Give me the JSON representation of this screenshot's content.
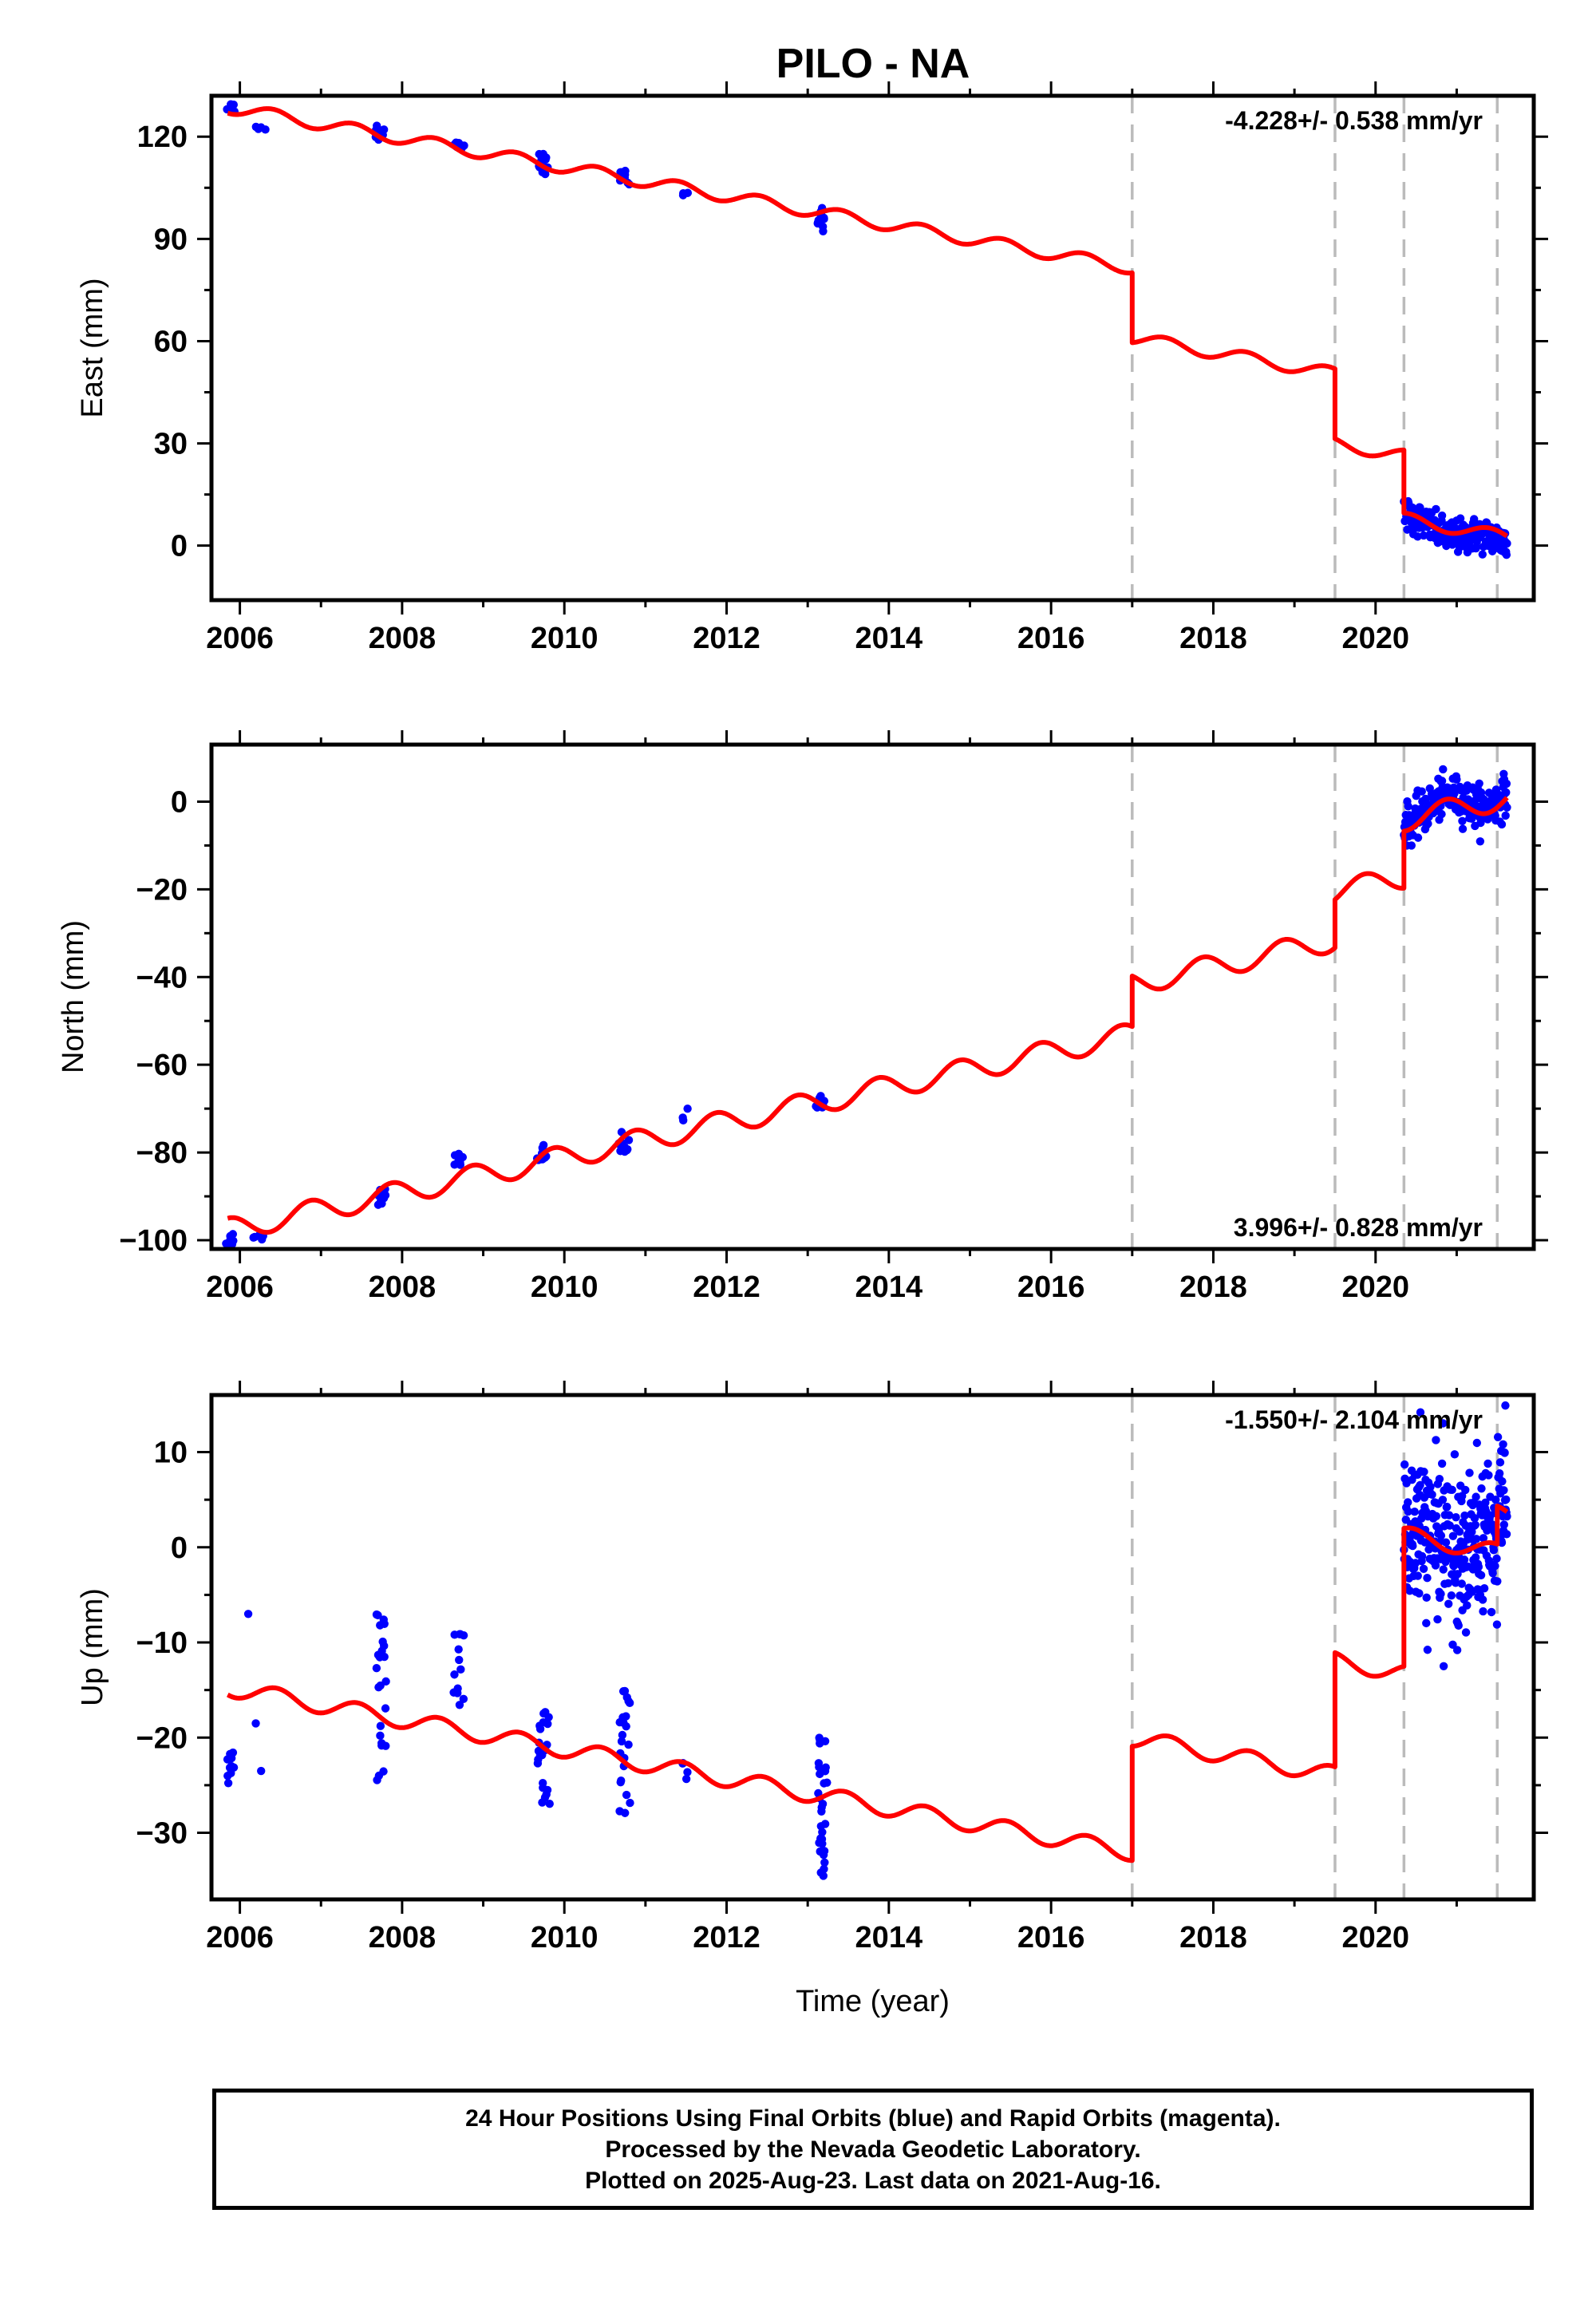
{
  "title": "PILO - NA",
  "colors": {
    "final_orbits": "#0000ff",
    "model": "#ff0000",
    "offsets": "#bbbbbb",
    "axes": "#000000"
  },
  "chart_data": [
    {
      "type": "scatter",
      "panel": "east",
      "ylabel": "East (mm)",
      "xlabel": "",
      "xlim": [
        2005.65,
        2021.95
      ],
      "ylim": [
        -16,
        132
      ],
      "xticks": [
        2006,
        2008,
        2010,
        2012,
        2014,
        2016,
        2018,
        2020
      ],
      "xtick_labels": [
        "2006",
        "2008",
        "2010",
        "2012",
        "2014",
        "2016",
        "2018",
        "2020"
      ],
      "yticks": [
        0,
        30,
        60,
        90,
        120
      ],
      "ytick_labels": [
        "0",
        "30",
        "60",
        "90",
        "120"
      ],
      "velocity": "-4.228+/- 0.538 mm/yr",
      "velocity_position": "top-right",
      "offsets": [
        2017.0,
        2019.5,
        2020.35,
        2021.5
      ],
      "model": {
        "rate": -4.228,
        "ref_x": 2006.0,
        "ref_y": 128.0,
        "amplitude": 1.8,
        "phase": 0.15,
        "steps": [
          {
            "x": 2017.0,
            "dy": -20.5
          },
          {
            "x": 2019.5,
            "dy": -20.5
          },
          {
            "x": 2020.35,
            "dy": -18.5
          }
        ]
      },
      "data_clusters": [
        {
          "x": [
            2005.85,
            2005.92
          ],
          "y": [
            130,
            127
          ],
          "n": 10
        },
        {
          "x": [
            2006.2,
            2006.3
          ],
          "y": [
            123,
            122
          ],
          "n": 4
        },
        {
          "x": [
            2007.68,
            2007.78
          ],
          "y": [
            124,
            119
          ],
          "n": 14
        },
        {
          "x": [
            2008.65,
            2008.75
          ],
          "y": [
            119,
            116
          ],
          "n": 8
        },
        {
          "x": [
            2009.68,
            2009.78
          ],
          "y": [
            115,
            109
          ],
          "n": 14
        },
        {
          "x": [
            2010.68,
            2010.78
          ],
          "y": [
            110,
            105
          ],
          "n": 10
        },
        {
          "x": [
            2011.45,
            2011.52
          ],
          "y": [
            104,
            102
          ],
          "n": 3
        },
        {
          "x": [
            2013.12,
            2013.2
          ],
          "y": [
            100,
            92
          ],
          "n": 14
        },
        {
          "x": [
            2020.35,
            2021.62
          ],
          "y": [
            7,
            -14
          ],
          "n": 220,
          "follow_model": true,
          "scatter": 2.5
        }
      ]
    },
    {
      "type": "scatter",
      "panel": "north",
      "ylabel": "North (mm)",
      "xlabel": "",
      "xlim": [
        2005.65,
        2021.95
      ],
      "ylim": [
        -102,
        13
      ],
      "xticks": [
        2006,
        2008,
        2010,
        2012,
        2014,
        2016,
        2018,
        2020
      ],
      "xtick_labels": [
        "2006",
        "2008",
        "2010",
        "2012",
        "2014",
        "2016",
        "2018",
        "2020"
      ],
      "yticks": [
        -100,
        -80,
        -60,
        -40,
        -20,
        0
      ],
      "ytick_labels": [
        "−100",
        "−80",
        "−60",
        "−40",
        "−20",
        "0"
      ],
      "velocity": "3.996+/- 0.828 mm/yr",
      "velocity_position": "bottom-right",
      "offsets": [
        2017.0,
        2019.5,
        2020.35,
        2021.5
      ],
      "model": {
        "rate": 3.996,
        "ref_x": 2006.0,
        "ref_y": -97.0,
        "amplitude": 2.6,
        "phase": 0.62,
        "steps": [
          {
            "x": 2017.0,
            "dy": 11.5
          },
          {
            "x": 2019.5,
            "dy": 11.0
          },
          {
            "x": 2020.35,
            "dy": 13.0
          }
        ]
      },
      "data_clusters": [
        {
          "x": [
            2005.85,
            2005.92
          ],
          "y": [
            -98,
            -101
          ],
          "n": 8
        },
        {
          "x": [
            2006.15,
            2006.3
          ],
          "y": [
            -98,
            -100
          ],
          "n": 5
        },
        {
          "x": [
            2007.7,
            2007.8
          ],
          "y": [
            -88,
            -92
          ],
          "n": 10
        },
        {
          "x": [
            2008.65,
            2008.75
          ],
          "y": [
            -80,
            -83
          ],
          "n": 8
        },
        {
          "x": [
            2009.68,
            2009.78
          ],
          "y": [
            -78,
            -82
          ],
          "n": 10
        },
        {
          "x": [
            2010.68,
            2010.78
          ],
          "y": [
            -74,
            -80
          ],
          "n": 10
        },
        {
          "x": [
            2011.45,
            2011.52
          ],
          "y": [
            -70,
            -73
          ],
          "n": 3
        },
        {
          "x": [
            2013.12,
            2013.2
          ],
          "y": [
            -67,
            -72
          ],
          "n": 12
        },
        {
          "x": [
            2020.35,
            2021.62
          ],
          "y": [
            3,
            8
          ],
          "n": 220,
          "follow_model": true,
          "scatter": 2.3
        }
      ]
    },
    {
      "type": "scatter",
      "panel": "up",
      "ylabel": "Up (mm)",
      "xlabel": "Time (year)",
      "xlim": [
        2005.65,
        2021.95
      ],
      "ylim": [
        -37,
        16
      ],
      "xticks": [
        2006,
        2008,
        2010,
        2012,
        2014,
        2016,
        2018,
        2020
      ],
      "xtick_labels": [
        "2006",
        "2008",
        "2010",
        "2012",
        "2014",
        "2016",
        "2018",
        "2020"
      ],
      "yticks": [
        -30,
        -20,
        -10,
        0,
        10
      ],
      "ytick_labels": [
        "−30",
        "−20",
        "−10",
        "0",
        "10"
      ],
      "velocity": "-1.550+/- 2.104 mm/yr",
      "velocity_position": "top-right",
      "offsets": [
        2017.0,
        2019.5,
        2020.35,
        2021.5
      ],
      "model": {
        "rate": -1.55,
        "ref_x": 2006.0,
        "ref_y": -15.0,
        "amplitude": 0.9,
        "phase": 0.2,
        "steps": [
          {
            "x": 2017.0,
            "dy": 12.0
          },
          {
            "x": 2019.5,
            "dy": 12.0
          },
          {
            "x": 2020.35,
            "dy": 14.5
          },
          {
            "x": 2021.5,
            "dy": 4.0
          }
        ]
      },
      "data_clusters": [
        {
          "x": [
            2005.85,
            2005.92
          ],
          "y": [
            -21,
            -25
          ],
          "n": 10
        },
        {
          "x": [
            2006.12,
            2006.18
          ],
          "y": [
            -7,
            -7
          ],
          "n": 1
        },
        {
          "x": [
            2006.18,
            2006.22
          ],
          "y": [
            -18.5,
            -18.5
          ],
          "n": 1
        },
        {
          "x": [
            2006.25,
            2006.3
          ],
          "y": [
            -23.5,
            -23.5
          ],
          "n": 1
        },
        {
          "x": [
            2007.68,
            2007.8
          ],
          "y": [
            -7,
            -25
          ],
          "n": 24
        },
        {
          "x": [
            2008.65,
            2008.75
          ],
          "y": [
            -9,
            -17
          ],
          "n": 14
        },
        {
          "x": [
            2009.68,
            2009.8
          ],
          "y": [
            -17,
            -27
          ],
          "n": 22
        },
        {
          "x": [
            2010.68,
            2010.8
          ],
          "y": [
            -13.5,
            -28.5
          ],
          "n": 22
        },
        {
          "x": [
            2011.45,
            2011.52
          ],
          "y": [
            -22.5,
            -25.5
          ],
          "n": 4
        },
        {
          "x": [
            2013.12,
            2013.22
          ],
          "y": [
            -20,
            -36
          ],
          "n": 30
        },
        {
          "x": [
            2020.35,
            2021.62
          ],
          "y": [
            1,
            3
          ],
          "n": 320,
          "follow_model": true,
          "scatter": 4.2
        }
      ]
    }
  ],
  "caption": {
    "lines": [
      "24 Hour Positions Using Final Orbits (blue) and Rapid Orbits (magenta).",
      "Processed by the Nevada Geodetic Laboratory.",
      "Plotted on 2025-Aug-23. Last data on 2021-Aug-16."
    ]
  }
}
